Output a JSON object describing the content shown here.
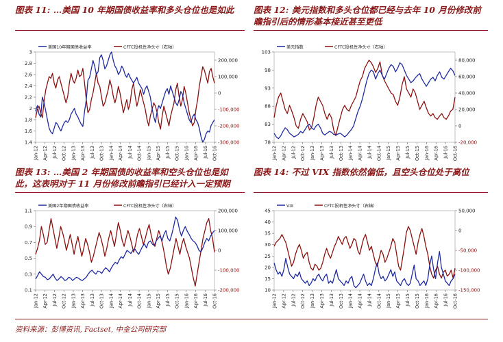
{
  "colors": {
    "blue": "#1f2aa0",
    "red": "#8b1010",
    "title": "#8b1a1a",
    "axis": "#333333"
  },
  "source": "资料来源：彭博资讯, Factset, 中金公司研究部",
  "chart_data": [
    {
      "type": "line",
      "title": "图表 11: …美国 10 年期国债收益率和多头仓位也是如此",
      "legend": [
        "美国10年期国债收益率",
        "CFTC投机性净头寸（右轴）"
      ],
      "x_ticks": [
        "Jan-12",
        "Apr-12",
        "Jul-12",
        "Oct-12",
        "Jan-13",
        "Apr-13",
        "Jul-13",
        "Oct-13",
        "Jan-14",
        "Apr-14",
        "Jul-14",
        "Oct-14",
        "Jan-15",
        "Apr-15",
        "Jul-15",
        "Oct-15",
        "Jan-16",
        "Apr-16",
        "Jul-16",
        "Oct-16"
      ],
      "left_axis": {
        "min": 1.4,
        "max": 3.0,
        "ticks": [
          "1.4",
          "1.6",
          "1.8",
          "2",
          "2.2",
          "2.4",
          "2.6",
          "2.8",
          "3"
        ]
      },
      "right_axis": {
        "min": -300000,
        "max": 250000,
        "ticks": [
          "200,000",
          "100,000",
          "0",
          "-100,000",
          "-200,000",
          "-300,000"
        ],
        "tick_values": [
          200000,
          100000,
          0,
          -100000,
          -200000,
          -300000
        ]
      },
      "series": [
        {
          "name": "美国10年期国债收益率",
          "axis": "left",
          "color": "blue",
          "values": [
            1.95,
            2.05,
            1.9,
            1.85,
            2.2,
            2.1,
            1.95,
            1.8,
            1.65,
            1.58,
            1.55,
            1.65,
            1.75,
            1.72,
            1.65,
            1.6,
            1.68,
            1.75,
            1.78,
            1.75,
            1.8,
            1.9,
            1.95,
            2.0,
            1.9,
            1.85,
            1.78,
            1.72,
            1.68,
            1.95,
            2.15,
            2.5,
            2.55,
            2.7,
            2.85,
            2.75,
            2.6,
            2.65,
            2.9,
            2.95,
            2.85,
            2.7,
            2.75,
            2.85,
            2.95,
            3.0,
            2.85,
            2.75,
            2.7,
            2.6,
            2.65,
            2.75,
            2.7,
            2.6,
            2.55,
            2.62,
            2.55,
            2.5,
            2.45,
            2.5,
            2.55,
            2.45,
            2.4,
            2.35,
            2.25,
            2.35,
            2.4,
            2.3,
            2.2,
            2.0,
            1.85,
            1.75,
            1.95,
            2.05,
            2.0,
            2.1,
            2.2,
            2.3,
            2.35,
            2.25,
            2.4,
            2.3,
            2.2,
            2.1,
            2.05,
            2.15,
            2.3,
            2.25,
            2.1,
            2.0,
            1.9,
            1.8,
            1.75,
            1.85,
            1.9,
            1.8,
            1.75,
            1.65,
            1.5,
            1.4,
            1.45,
            1.55,
            1.6,
            1.58,
            1.7,
            1.75,
            1.8
          ]
        },
        {
          "name": "CFTC投机性净头寸（右轴）",
          "axis": "right",
          "color": "red",
          "values": [
            -150000,
            -100000,
            -80000,
            -120000,
            -150000,
            -50000,
            20000,
            60000,
            100000,
            90000,
            120000,
            60000,
            30000,
            80000,
            100000,
            60000,
            20000,
            -20000,
            -60000,
            -20000,
            60000,
            120000,
            80000,
            60000,
            90000,
            140000,
            100000,
            110000,
            150000,
            60000,
            -40000,
            -120000,
            -100000,
            -40000,
            0,
            60000,
            120000,
            60000,
            40000,
            -20000,
            -80000,
            -60000,
            -20000,
            20000,
            80000,
            40000,
            -20000,
            -60000,
            -20000,
            40000,
            0,
            -60000,
            -120000,
            -80000,
            -40000,
            -100000,
            -60000,
            20000,
            60000,
            -20000,
            -80000,
            -40000,
            20000,
            -20000,
            -60000,
            -100000,
            -160000,
            -200000,
            -140000,
            -100000,
            -60000,
            -80000,
            -120000,
            -180000,
            -220000,
            -140000,
            -80000,
            -120000,
            -160000,
            -200000,
            -140000,
            -100000,
            -60000,
            20000,
            60000,
            -20000,
            -80000,
            -40000,
            40000,
            0,
            -60000,
            -120000,
            -160000,
            -200000,
            -180000,
            -100000,
            -40000,
            40000,
            100000,
            160000,
            140000,
            100000,
            60000,
            130000,
            150000,
            100000,
            60000
          ]
        }
      ]
    },
    {
      "type": "line",
      "title": "图表 12: 美元指数和多头仓位都已经与去年 10 月份修改前瞻指引后的情形基本接近甚至更低",
      "legend": [
        "美元指数",
        "CFTC投机性净头寸（右轴）"
      ],
      "x_ticks": [
        "Jan-12",
        "Apr-12",
        "Jul-12",
        "Oct-12",
        "Jan-13",
        "Apr-13",
        "Jul-13",
        "Oct-13",
        "Jan-14",
        "Apr-14",
        "Jul-14",
        "Oct-14",
        "Jan-15",
        "Apr-15",
        "Jul-15",
        "Oct-15",
        "Jan-16",
        "Apr-16",
        "Jul-16",
        "Oct-16"
      ],
      "left_axis": {
        "min": 78,
        "max": 103,
        "ticks": [
          "78",
          "83",
          "88",
          "93",
          "98",
          "103"
        ]
      },
      "right_axis": {
        "min": -20000,
        "max": 90000,
        "ticks": [
          "80,000",
          "60,000",
          "40,000",
          "20,000",
          "0",
          "-20,000"
        ],
        "tick_values": [
          80000,
          60000,
          40000,
          20000,
          0,
          -20000
        ]
      },
      "series": [
        {
          "name": "美元指数",
          "axis": "left",
          "color": "blue",
          "values": [
            80.5,
            79.5,
            79.0,
            79.8,
            81.0,
            82.0,
            81.5,
            80.5,
            80.0,
            79.5,
            79.8,
            80.2,
            81.0,
            80.6,
            81.5,
            82.5,
            83.0,
            82.0,
            81.5,
            82.5,
            83.0,
            82.0,
            80.5,
            80.0,
            80.5,
            81.0,
            80.8,
            80.2,
            80.0,
            80.3,
            80.5,
            80.0,
            79.5,
            80.0,
            80.8,
            81.5,
            82.5,
            84.5,
            86.5,
            88.0,
            90.0,
            92.5,
            95.0,
            97.0,
            98.0,
            97.5,
            95.5,
            97.0,
            98.0,
            96.5,
            95.5,
            97.0,
            98.5,
            99.5,
            99.0,
            97.5,
            98.5,
            100.0,
            99.5,
            98.0,
            96.5,
            95.5,
            94.5,
            95.0,
            95.8,
            96.5,
            97.0,
            95.5,
            94.5,
            93.5,
            94.5,
            95.5,
            96.0,
            95.0,
            96.5,
            97.5,
            96.0,
            95.5,
            96.5,
            97.5,
            98.5,
            97.8,
            96.5
          ]
        },
        {
          "name": "CFTC投机性净头寸（右轴）",
          "axis": "right",
          "color": "red",
          "values": [
            10000,
            25000,
            35000,
            40000,
            30000,
            20000,
            15000,
            25000,
            18000,
            10000,
            0,
            -3000,
            8000,
            15000,
            10000,
            5000,
            -5000,
            -2000,
            10000,
            25000,
            35000,
            30000,
            25000,
            15000,
            8000,
            15000,
            10000,
            -5000,
            -12000,
            0,
            10000,
            20000,
            25000,
            20000,
            18000,
            25000,
            30000,
            35000,
            45000,
            55000,
            60000,
            70000,
            75000,
            80000,
            77000,
            72000,
            65000,
            70000,
            78000,
            62000,
            55000,
            50000,
            45000,
            40000,
            38000,
            30000,
            25000,
            35000,
            50000,
            60000,
            45000,
            40000,
            35000,
            45000,
            40000,
            30000,
            20000,
            25000,
            30000,
            22000,
            15000,
            12000,
            15000,
            10000,
            8000,
            12000,
            15000,
            10000,
            8000,
            12000,
            18000,
            20000,
            35000
          ]
        }
      ]
    },
    {
      "type": "line",
      "title": "图表 13: …美国 2 年期国债的收益率和空头仓位也是如此，这表明对于 11 月份修改前瞻指引已经计入一定预期",
      "legend": [
        "美国2年期国债收益率",
        "CFTC投机性净头寸（右轴）"
      ],
      "x_ticks": [
        "Jan-12",
        "Apr-12",
        "Jul-12",
        "Oct-12",
        "Jan-13",
        "Apr-13",
        "Jul-13",
        "Oct-13",
        "Jan-14",
        "Apr-14",
        "Jul-14",
        "Oct-14",
        "Jan-15",
        "Apr-15",
        "Jul-15",
        "Oct-15",
        "Jan-16",
        "Apr-16",
        "Jul-16",
        "Oct-16"
      ],
      "left_axis": {
        "min": 0.2,
        "max": 1.1,
        "ticks": [
          "0.1",
          "0.3",
          "0.5",
          "0.7",
          "0.9",
          "1.1"
        ],
        "tick_values": [
          0.1,
          0.3,
          0.5,
          0.7,
          0.9,
          1.1
        ]
      },
      "right_axis": {
        "min": -200000,
        "max": 200000,
        "ticks": [
          "200,000",
          "100,000",
          "0",
          "-100,000",
          "-200,000"
        ],
        "tick_values": [
          200000,
          100000,
          0,
          -100000,
          -200000
        ]
      },
      "series": [
        {
          "name": "美国2年期国债收益率",
          "axis": "left",
          "color": "blue",
          "values": [
            0.24,
            0.28,
            0.33,
            0.3,
            0.27,
            0.26,
            0.23,
            0.24,
            0.27,
            0.3,
            0.25,
            0.22,
            0.24,
            0.27,
            0.25,
            0.22,
            0.23,
            0.26,
            0.25,
            0.22,
            0.24,
            0.26,
            0.25,
            0.23,
            0.22,
            0.24,
            0.26,
            0.3,
            0.33,
            0.35,
            0.32,
            0.3,
            0.34,
            0.33,
            0.31,
            0.35,
            0.38,
            0.36,
            0.33,
            0.38,
            0.42,
            0.45,
            0.43,
            0.48,
            0.52,
            0.5,
            0.55,
            0.6,
            0.58,
            0.56,
            0.6,
            0.62,
            0.58,
            0.55,
            0.6,
            0.65,
            0.68,
            0.63,
            0.7,
            0.72,
            0.68,
            0.66,
            0.72,
            0.75,
            0.78,
            0.72,
            0.8,
            0.85,
            0.75,
            0.72,
            0.8,
            0.9,
            1.02,
            0.98,
            0.86,
            0.78,
            0.85,
            0.9,
            0.84,
            0.8,
            0.75,
            0.72,
            0.7,
            0.66,
            0.6,
            0.58,
            0.63,
            0.7,
            0.75,
            0.72,
            0.78,
            0.82,
            0.85
          ]
        },
        {
          "name": "CFTC投机性净头寸（右轴）",
          "axis": "right",
          "color": "red",
          "values": [
            -20000,
            10000,
            50000,
            120000,
            80000,
            30000,
            40000,
            100000,
            160000,
            110000,
            60000,
            10000,
            60000,
            120000,
            90000,
            50000,
            0,
            40000,
            80000,
            30000,
            -20000,
            30000,
            70000,
            20000,
            -30000,
            10000,
            60000,
            30000,
            -10000,
            -60000,
            -30000,
            10000,
            50000,
            90000,
            60000,
            20000,
            -30000,
            10000,
            60000,
            100000,
            60000,
            20000,
            80000,
            140000,
            100000,
            50000,
            20000,
            60000,
            100000,
            70000,
            30000,
            -10000,
            30000,
            80000,
            110000,
            70000,
            30000,
            60000,
            100000,
            130000,
            80000,
            40000,
            20000,
            60000,
            100000,
            70000,
            30000,
            -20000,
            -80000,
            -120000,
            -90000,
            -40000,
            10000,
            60000,
            20000,
            -20000,
            30000,
            60000,
            20000,
            -10000,
            -40000,
            -90000,
            -140000,
            -180000,
            -120000,
            -60000,
            0,
            60000,
            100000,
            140000,
            160000,
            100000,
            60000,
            -10000
          ]
        }
      ]
    },
    {
      "type": "line",
      "title": "图表 14: 不过 VIX 指数依然偏低，且空头仓位处于高位",
      "legend": [
        "VIX",
        "CFTC投机性净头寸（右轴）"
      ],
      "x_ticks": [
        "Jan-12",
        "Apr-12",
        "Jul-12",
        "Oct-12",
        "Jan-13",
        "Apr-13",
        "Jul-13",
        "Oct-13",
        "Jan-14",
        "Apr-14",
        "Jul-14",
        "Oct-14",
        "Jan-15",
        "Apr-15",
        "Jul-15",
        "Oct-15",
        "Jan-16",
        "Apr-16",
        "Jul-16",
        "Oct-16"
      ],
      "left_axis": {
        "min": 10,
        "max": 45,
        "ticks": [
          "10",
          "15",
          "20",
          "25",
          "30",
          "35",
          "40",
          "45"
        ]
      },
      "right_axis": {
        "min": -150000,
        "max": 50000,
        "ticks": [
          "50,000",
          "0",
          "-50,000",
          "-100,000",
          "-150,000"
        ],
        "tick_values": [
          50000,
          0,
          -50000,
          -100000,
          -150000
        ]
      },
      "series": [
        {
          "name": "VIX",
          "axis": "left",
          "color": "blue",
          "values": [
            22,
            19,
            17,
            18,
            16,
            19,
            24,
            20,
            17,
            16,
            15,
            17,
            16,
            18,
            15,
            14,
            13,
            14,
            12,
            13,
            15,
            14,
            16,
            17,
            15,
            14,
            16,
            17,
            13,
            14,
            13,
            16,
            19,
            15,
            14,
            13,
            12,
            14,
            13,
            15,
            16,
            12,
            11,
            12,
            13,
            15,
            17,
            14,
            12,
            13,
            12,
            15,
            19,
            22,
            17,
            15,
            16,
            14,
            15,
            17,
            19,
            16,
            18,
            14,
            13,
            12,
            14,
            15,
            13,
            12,
            13,
            17,
            21,
            15,
            14,
            12,
            13,
            14,
            12,
            15,
            21,
            25,
            19,
            15,
            22,
            27,
            20,
            17,
            14,
            13,
            12,
            14,
            15,
            17
          ]
        },
        {
          "name": "CFTC投机性净头寸（右轴）",
          "axis": "right",
          "color": "red",
          "values": [
            -40000,
            -30000,
            -25000,
            -20000,
            -10000,
            -20000,
            -30000,
            -50000,
            -70000,
            -90000,
            -80000,
            -60000,
            -45000,
            -35000,
            -50000,
            -70000,
            -60000,
            -55000,
            -80000,
            -95000,
            -100000,
            -85000,
            -90000,
            -100000,
            -95000,
            -80000,
            -60000,
            -45000,
            -60000,
            -70000,
            -55000,
            -40000,
            -30000,
            -15000,
            -25000,
            -35000,
            -20000,
            -15000,
            -30000,
            -45000,
            -35000,
            -20000,
            -25000,
            -50000,
            -60000,
            -40000,
            -20000,
            -10000,
            -30000,
            -50000,
            -40000,
            -60000,
            -80000,
            -90000,
            -70000,
            -50000,
            -60000,
            -80000,
            -70000,
            -55000,
            -40000,
            -20000,
            -30000,
            -60000,
            -90000,
            -100000,
            -70000,
            -40000,
            -5000,
            10000,
            0,
            -20000,
            -40000,
            -60000,
            -30000,
            -10000,
            5000,
            -15000,
            -40000,
            -60000,
            -90000,
            -110000,
            -120000,
            -100000,
            -90000,
            -110000,
            -120000,
            -105000,
            -100000,
            -115000,
            -110000,
            -100000,
            -120000,
            -95000
          ]
        }
      ]
    }
  ]
}
